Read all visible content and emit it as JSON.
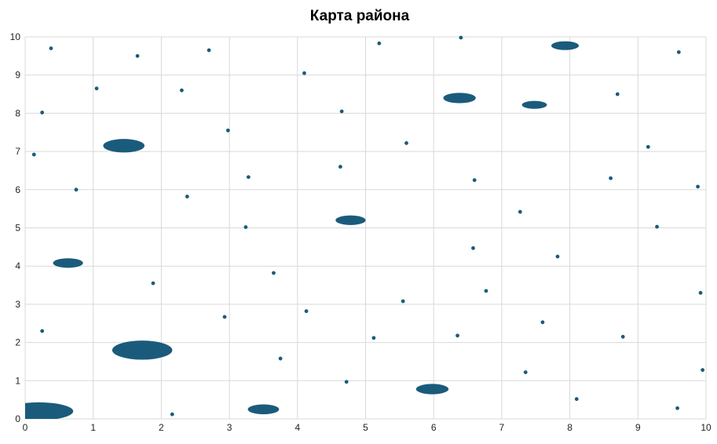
{
  "chart_data": {
    "type": "scatter",
    "title": "Карта района",
    "xlabel": "",
    "ylabel": "",
    "xlim": [
      0,
      10
    ],
    "ylim": [
      0,
      10
    ],
    "x_ticks": [
      "0",
      "1",
      "2",
      "3",
      "4",
      "5",
      "6",
      "7",
      "8",
      "9",
      "10"
    ],
    "y_ticks": [
      "0",
      "1",
      "2",
      "3",
      "4",
      "5",
      "6",
      "7",
      "8",
      "9",
      "10"
    ],
    "grid": true,
    "legend": "none",
    "color": "#1a5b7c",
    "small_points": [
      {
        "x": 0.38,
        "y": 9.7
      },
      {
        "x": 1.65,
        "y": 9.5
      },
      {
        "x": 2.7,
        "y": 9.65
      },
      {
        "x": 5.2,
        "y": 9.83
      },
      {
        "x": 6.4,
        "y": 9.98
      },
      {
        "x": 9.6,
        "y": 9.6
      },
      {
        "x": 4.1,
        "y": 9.05
      },
      {
        "x": 1.05,
        "y": 8.65
      },
      {
        "x": 2.3,
        "y": 8.6
      },
      {
        "x": 8.7,
        "y": 8.5
      },
      {
        "x": 0.25,
        "y": 8.02
      },
      {
        "x": 4.65,
        "y": 8.05
      },
      {
        "x": 2.98,
        "y": 7.55
      },
      {
        "x": 5.6,
        "y": 7.22
      },
      {
        "x": 9.15,
        "y": 7.12
      },
      {
        "x": 0.13,
        "y": 6.92
      },
      {
        "x": 4.63,
        "y": 6.6
      },
      {
        "x": 3.28,
        "y": 6.33
      },
      {
        "x": 6.6,
        "y": 6.25
      },
      {
        "x": 8.6,
        "y": 6.3
      },
      {
        "x": 9.88,
        "y": 6.08
      },
      {
        "x": 0.75,
        "y": 6.0
      },
      {
        "x": 2.38,
        "y": 5.82
      },
      {
        "x": 7.27,
        "y": 5.42
      },
      {
        "x": 3.24,
        "y": 5.02
      },
      {
        "x": 9.28,
        "y": 5.03
      },
      {
        "x": 6.58,
        "y": 4.47
      },
      {
        "x": 7.82,
        "y": 4.25
      },
      {
        "x": 3.65,
        "y": 3.82
      },
      {
        "x": 1.88,
        "y": 3.55
      },
      {
        "x": 6.77,
        "y": 3.35
      },
      {
        "x": 9.92,
        "y": 3.3
      },
      {
        "x": 5.55,
        "y": 3.08
      },
      {
        "x": 4.13,
        "y": 2.82
      },
      {
        "x": 2.93,
        "y": 2.67
      },
      {
        "x": 7.6,
        "y": 2.53
      },
      {
        "x": 0.25,
        "y": 2.3
      },
      {
        "x": 6.35,
        "y": 2.18
      },
      {
        "x": 5.12,
        "y": 2.12
      },
      {
        "x": 8.78,
        "y": 2.15
      },
      {
        "x": 3.75,
        "y": 1.58
      },
      {
        "x": 9.95,
        "y": 1.28
      },
      {
        "x": 7.35,
        "y": 1.22
      },
      {
        "x": 4.72,
        "y": 0.97
      },
      {
        "x": 8.1,
        "y": 0.52
      },
      {
        "x": 9.58,
        "y": 0.28
      },
      {
        "x": 2.16,
        "y": 0.12
      }
    ],
    "blobs": [
      {
        "x": 7.93,
        "y": 9.77,
        "rx": 0.22,
        "ry": 0.22
      },
      {
        "x": 6.38,
        "y": 8.4,
        "rx": 0.26,
        "ry": 0.26
      },
      {
        "x": 7.48,
        "y": 8.22,
        "rx": 0.2,
        "ry": 0.2
      },
      {
        "x": 1.45,
        "y": 7.15,
        "rx": 0.33,
        "ry": 0.34
      },
      {
        "x": 4.78,
        "y": 5.2,
        "rx": 0.24,
        "ry": 0.24
      },
      {
        "x": 0.63,
        "y": 4.08,
        "rx": 0.24,
        "ry": 0.24
      },
      {
        "x": 1.72,
        "y": 1.8,
        "rx": 0.48,
        "ry": 0.48
      },
      {
        "x": 5.98,
        "y": 0.78,
        "rx": 0.26,
        "ry": 0.26
      },
      {
        "x": 3.5,
        "y": 0.25,
        "rx": 0.25,
        "ry": 0.25
      },
      {
        "x": 0.2,
        "y": 0.2,
        "rx": 0.55,
        "ry": 0.45
      }
    ]
  }
}
